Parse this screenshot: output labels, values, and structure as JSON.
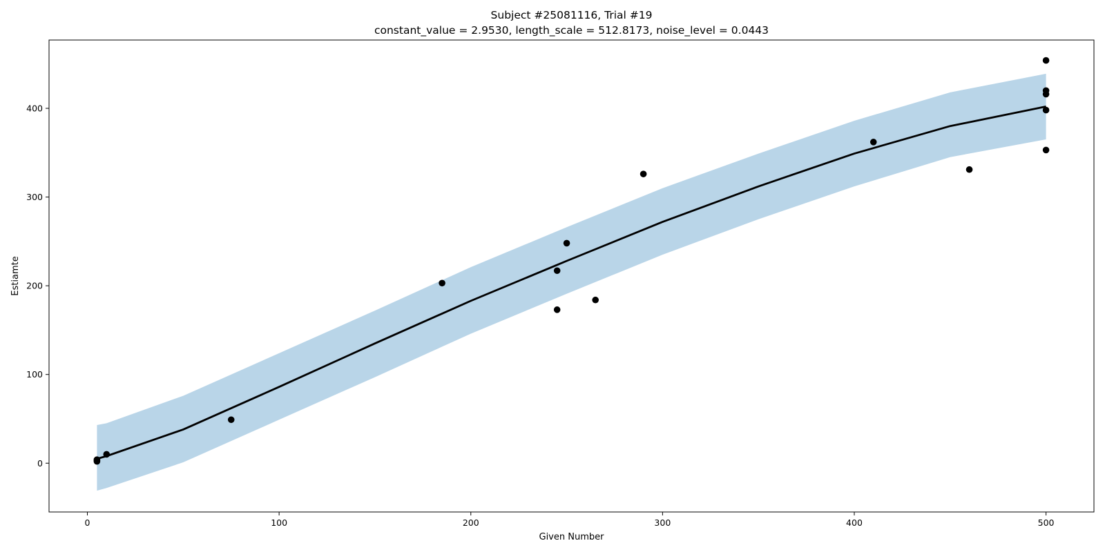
{
  "chart_data": {
    "type": "scatter",
    "title": "Subject #25081116, Trial #19",
    "subtitle": "constant_value = 2.9530,  length_scale = 512.8173,  noise_level = 0.0443",
    "xlabel": "Given Number",
    "ylabel": "Estiamte",
    "xlim": [
      -20,
      525
    ],
    "ylim": [
      -55,
      477
    ],
    "xticks": [
      0,
      100,
      200,
      300,
      400,
      500
    ],
    "yticks": [
      0,
      100,
      200,
      300,
      400
    ],
    "grid": false,
    "points": {
      "x": [
        5,
        5,
        5,
        10,
        75,
        185,
        245,
        245,
        250,
        265,
        290,
        410,
        460,
        500,
        500,
        500,
        500,
        500
      ],
      "y": [
        2,
        3,
        4,
        10,
        49,
        203,
        173,
        217,
        248,
        184,
        326,
        362,
        331,
        454,
        420,
        416,
        398,
        353
      ],
      "color": "#000000"
    },
    "mean_curve": {
      "x": [
        5,
        10,
        50,
        100,
        150,
        200,
        250,
        300,
        350,
        400,
        450,
        500
      ],
      "y": [
        5,
        8,
        38,
        86,
        135,
        183,
        228,
        272,
        312,
        349,
        380,
        402
      ],
      "color": "#000000"
    },
    "confidence_band": {
      "x": [
        5,
        10,
        50,
        100,
        150,
        200,
        250,
        300,
        350,
        400,
        450,
        500
      ],
      "lower": [
        -31,
        -28,
        1,
        49,
        97,
        146,
        191,
        235,
        275,
        312,
        345,
        365
      ],
      "upper": [
        43,
        45,
        76,
        124,
        172,
        221,
        266,
        310,
        349,
        386,
        418,
        439
      ],
      "color": "#b9d5e8"
    }
  }
}
